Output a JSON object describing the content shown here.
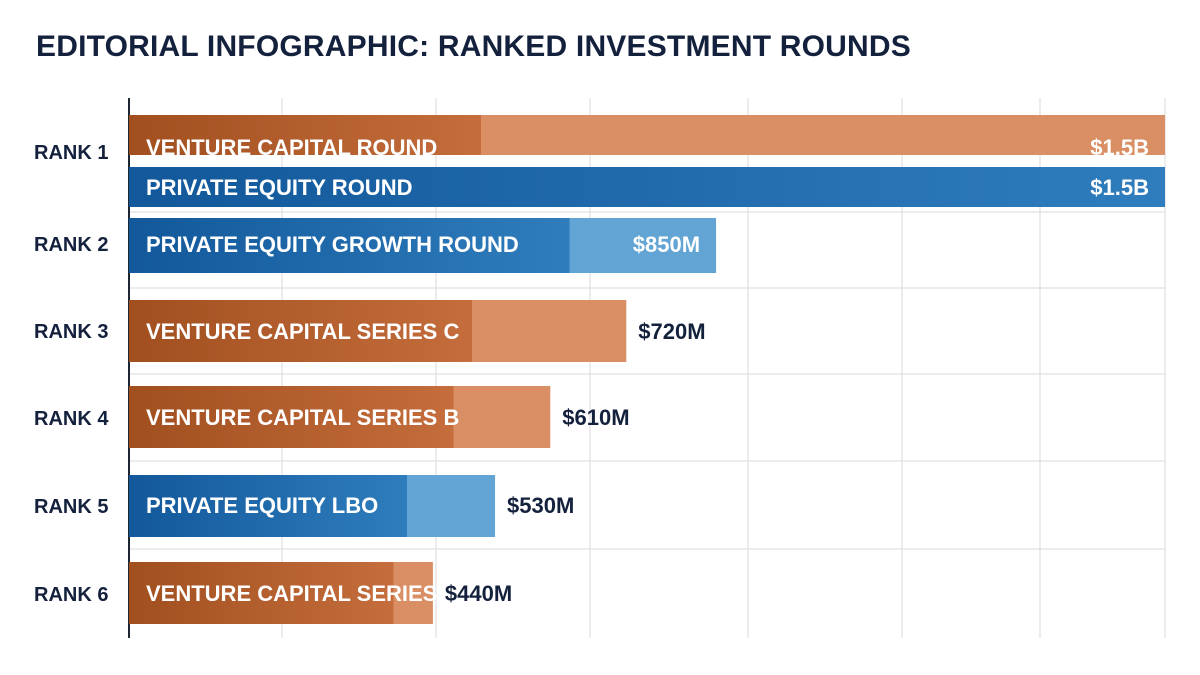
{
  "title": "EDITORIAL INFOGRAPHIC: RANKED INVESTMENT ROUNDS",
  "colors": {
    "venture_dark": "#a14f1f",
    "venture_mid": "#c56d3c",
    "venture_light": "#d98f63",
    "private_dark": "#12589a",
    "private_mid": "#2f7dbd",
    "private_light": "#62a5d4",
    "text_dark": "#14213d",
    "grid": "#e0e0e0",
    "axis": "#1d2733"
  },
  "chart_data": {
    "type": "bar",
    "orientation": "horizontal",
    "title": "EDITORIAL INFOGRAPHIC: RANKED INVESTMENT ROUNDS",
    "xlim": [
      0,
      1500
    ],
    "value_unit": "USD millions",
    "grid": "vertical",
    "ranks": [
      "RANK 1",
      "RANK 2",
      "RANK 3",
      "RANK 4",
      "RANK 5",
      "RANK 6"
    ],
    "bars": [
      {
        "rank": "RANK 1",
        "label": "VENTURE CAPITAL ROUND",
        "category": "venture",
        "value": 1500,
        "value_label": "$1.5B"
      },
      {
        "rank": "RANK 1",
        "label": "PRIVATE EQUITY ROUND",
        "category": "private",
        "value": 1500,
        "value_label": "$1.5B"
      },
      {
        "rank": "RANK 2",
        "label": "PRIVATE EQUITY GROWTH ROUND",
        "category": "private",
        "value": 850,
        "value_label": "$850M"
      },
      {
        "rank": "RANK 3",
        "label": "VENTURE CAPITAL SERIES C",
        "category": "venture",
        "value": 720,
        "value_label": "$720M"
      },
      {
        "rank": "RANK 4",
        "label": "VENTURE CAPITAL SERIES B",
        "category": "venture",
        "value": 610,
        "value_label": "$610M"
      },
      {
        "rank": "RANK 5",
        "label": "PRIVATE EQUITY LBO",
        "category": "private",
        "value": 530,
        "value_label": "$530M"
      },
      {
        "rank": "RANK 6",
        "label": "VENTURE CAPITAL SERIES A",
        "category": "venture",
        "value": 440,
        "value_label": "$440M"
      }
    ]
  }
}
